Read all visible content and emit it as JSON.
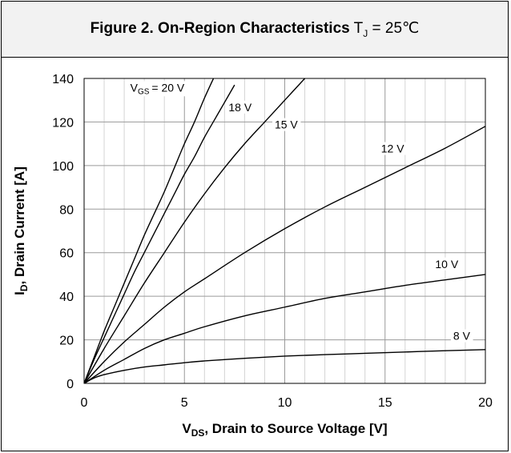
{
  "title": {
    "bold": "Figure 2. On-Region Characteristics",
    "cond_symbol": "T",
    "cond_sub": "J",
    "cond_value": "= 25℃"
  },
  "chart_data": {
    "type": "line",
    "xlabel": {
      "main": "V",
      "sub": "DS",
      "rest": ", Drain to Source Voltage [V]"
    },
    "ylabel": {
      "main": "I",
      "sub": "D",
      "rest": ", Drain Current [A]"
    },
    "xlim": [
      0,
      20
    ],
    "ylim": [
      0,
      140
    ],
    "xticks": [
      0,
      5,
      10,
      15,
      20
    ],
    "yticks": [
      0,
      20,
      40,
      60,
      80,
      100,
      120,
      140
    ],
    "x_minor_step": 1,
    "y_major_grid": true,
    "series": [
      {
        "name": "20 V",
        "label_prefix": "V",
        "label_sub": "GS",
        "label_value": "= 20 V",
        "x": [
          0,
          0.5,
          1,
          1.5,
          2,
          2.5,
          3,
          3.5,
          4,
          4.5,
          5,
          5.5,
          6,
          6.5
        ],
        "y": [
          0,
          12,
          24,
          35,
          46,
          57,
          68,
          78,
          88,
          99,
          110,
          120,
          131,
          141
        ]
      },
      {
        "name": "18 V",
        "label_value": "18 V",
        "x": [
          0,
          0.5,
          1,
          1.5,
          2,
          2.5,
          3,
          3.5,
          4,
          4.5,
          5,
          5.5,
          6,
          6.5,
          7,
          7.5
        ],
        "y": [
          0,
          11,
          21,
          31,
          41,
          51,
          60,
          69,
          78,
          87,
          96,
          104,
          113,
          121,
          129,
          137
        ]
      },
      {
        "name": "15 V",
        "label_value": "15 V",
        "x": [
          0,
          1,
          2,
          3,
          4,
          5,
          6,
          7,
          8,
          9,
          10,
          11
        ],
        "y": [
          0,
          16,
          31,
          46,
          60,
          74,
          87,
          99,
          110,
          120,
          130,
          140
        ]
      },
      {
        "name": "12 V",
        "label_value": "12 V",
        "x": [
          0,
          1,
          2,
          3,
          4,
          5,
          6,
          8,
          10,
          12,
          14,
          16,
          18,
          20
        ],
        "y": [
          0,
          10,
          19,
          27,
          35,
          42,
          48,
          60,
          71,
          81,
          90,
          99,
          108,
          118
        ]
      },
      {
        "name": "10 V",
        "label_value": "10 V",
        "x": [
          0,
          1,
          2,
          3,
          4,
          5,
          6,
          8,
          10,
          12,
          14,
          16,
          18,
          20
        ],
        "y": [
          0,
          6,
          11,
          16,
          20,
          23,
          26,
          31,
          35,
          39,
          42,
          45,
          47.5,
          50
        ]
      },
      {
        "name": "8 V",
        "label_value": "8 V",
        "x": [
          0,
          0.5,
          1,
          2,
          3,
          4,
          5,
          6,
          8,
          10,
          12,
          14,
          16,
          18,
          20
        ],
        "y": [
          0,
          2.5,
          4,
          6,
          7.5,
          8.5,
          9.5,
          10.3,
          11.5,
          12.5,
          13.2,
          13.8,
          14.4,
          15,
          15.5
        ]
      }
    ]
  }
}
